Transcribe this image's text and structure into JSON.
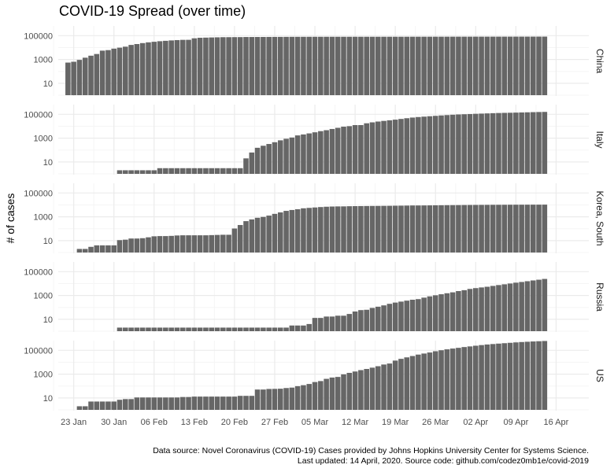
{
  "title": "COVID-19 Spread (over time)",
  "caption_line1": "Data source: Novel Coronavirus (COVID-19) Cases provided by Johns Hopkins University Center for Systems Science.",
  "caption_line2": "Last updated: 14 April, 2020. Source code: github.com/codez0mb1e/covid-2019",
  "chart_data": {
    "type": "bar",
    "title": "COVID-19 Spread (over time)",
    "xlabel": "",
    "ylabel": "# of cases",
    "y_scale": "log10",
    "y_ticks": [
      10,
      1000,
      100000
    ],
    "y_tick_labels": [
      "10",
      "1000",
      "100000"
    ],
    "ylim": [
      1,
      1000000
    ],
    "x_start_date": "2020-01-22",
    "x_ticks": [
      "23 Jan",
      "30 Jan",
      "06 Feb",
      "13 Feb",
      "20 Feb",
      "27 Feb",
      "05 Mar",
      "12 Mar",
      "19 Mar",
      "26 Mar",
      "02 Apr",
      "09 Apr",
      "16 Apr"
    ],
    "bar_color": "#666666",
    "grid": true,
    "facet_position": "right",
    "series": [
      {
        "name": "China",
        "values": [
          548,
          643,
          920,
          1406,
          2075,
          2877,
          5509,
          6087,
          8141,
          9802,
          11891,
          16630,
          19716,
          23707,
          27440,
          30587,
          34110,
          36814,
          39829,
          42354,
          44386,
          44759,
          59895,
          66358,
          68413,
          70513,
          72434,
          74211,
          74619,
          75077,
          75550,
          77001,
          77022,
          77241,
          77754,
          78166,
          78600,
          78928,
          79356,
          79932,
          80136,
          80261,
          80386,
          80537,
          80690,
          80770,
          80823,
          80860,
          80887,
          80921,
          80932,
          80945,
          80977,
          81003,
          81033,
          81058,
          81102,
          81156,
          81250,
          81305,
          81435,
          81498,
          81591,
          81661,
          81782,
          81897,
          81999,
          82122,
          82198,
          82279,
          82361,
          82432,
          82511,
          82543,
          82602,
          82665,
          82718,
          82809,
          82883,
          82941,
          83014,
          83134,
          83213,
          83306
        ]
      },
      {
        "name": "Italy",
        "values": [
          null,
          null,
          null,
          null,
          null,
          null,
          null,
          null,
          null,
          2,
          2,
          2,
          2,
          2,
          2,
          2,
          3,
          3,
          3,
          3,
          3,
          3,
          3,
          3,
          3,
          3,
          3,
          3,
          3,
          3,
          3,
          20,
          62,
          155,
          229,
          322,
          453,
          655,
          888,
          1128,
          1694,
          2036,
          2502,
          3089,
          3858,
          4636,
          5883,
          7375,
          9172,
          10149,
          12462,
          12462,
          17660,
          21157,
          24747,
          27980,
          31506,
          35713,
          41035,
          47021,
          53578,
          59138,
          63927,
          69176,
          74386,
          80589,
          86498,
          92472,
          97689,
          101739,
          105792,
          110574,
          115242,
          119827,
          124632,
          128948,
          132547,
          135586,
          139422,
          143626,
          147577,
          152271,
          156363,
          159516
        ]
      },
      {
        "name": "Korea, South",
        "values": [
          1,
          1,
          2,
          2,
          3,
          4,
          4,
          4,
          4,
          11,
          12,
          15,
          15,
          16,
          19,
          23,
          24,
          24,
          25,
          27,
          28,
          28,
          28,
          28,
          28,
          29,
          30,
          31,
          31,
          104,
          204,
          433,
          602,
          833,
          977,
          1261,
          1766,
          2337,
          3150,
          3736,
          4335,
          5186,
          5621,
          6088,
          6593,
          7041,
          7314,
          7478,
          7513,
          7755,
          7869,
          7979,
          8086,
          8162,
          8236,
          8320,
          8413,
          8565,
          8652,
          8799,
          8961,
          8961,
          9037,
          9137,
          9241,
          9332,
          9478,
          9583,
          9661,
          9786,
          9887,
          9976,
          10062,
          10156,
          10237,
          10284,
          10331,
          10384,
          10423,
          10450,
          10480,
          10512,
          10537,
          10564
        ]
      },
      {
        "name": "Russia",
        "values": [
          null,
          null,
          null,
          null,
          null,
          null,
          null,
          null,
          null,
          2,
          2,
          2,
          2,
          2,
          2,
          2,
          2,
          2,
          2,
          2,
          2,
          2,
          2,
          2,
          2,
          2,
          2,
          2,
          2,
          2,
          2,
          2,
          2,
          2,
          2,
          2,
          2,
          2,
          2,
          3,
          3,
          3,
          4,
          13,
          13,
          17,
          17,
          20,
          20,
          28,
          45,
          59,
          63,
          90,
          114,
          147,
          199,
          253,
          306,
          367,
          438,
          495,
          658,
          840,
          1036,
          1264,
          1534,
          1836,
          2337,
          2777,
          3548,
          4149,
          4731,
          5389,
          6343,
          7497,
          8672,
          10131,
          11917,
          13584,
          15770,
          18328,
          21102,
          24490
        ]
      },
      {
        "name": "US",
        "values": [
          1,
          1,
          2,
          2,
          5,
          5,
          5,
          5,
          5,
          7,
          8,
          8,
          11,
          11,
          11,
          11,
          11,
          11,
          11,
          11,
          12,
          12,
          13,
          13,
          13,
          13,
          13,
          13,
          13,
          13,
          15,
          15,
          15,
          51,
          51,
          57,
          58,
          60,
          68,
          74,
          98,
          118,
          149,
          217,
          262,
          402,
          518,
          583,
          959,
          1281,
          1663,
          2179,
          2727,
          3499,
          4632,
          6421,
          7783,
          13747,
          19273,
          25600,
          33276,
          43847,
          53740,
          65778,
          83836,
          101657,
          121465,
          140909,
          161831,
          188172,
          213242,
          243622,
          275367,
          308650,
          336802,
          366317,
          397121,
          428654,
          462780,
          496535,
          526396,
          555313,
          580619,
          607670
        ]
      }
    ]
  }
}
